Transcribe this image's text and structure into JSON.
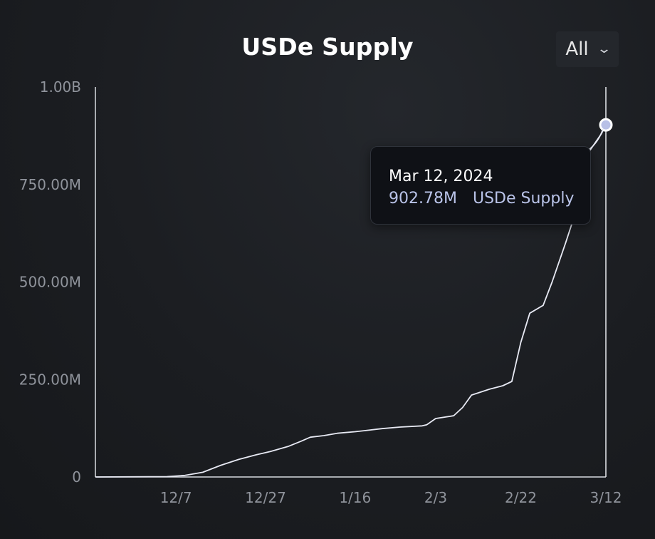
{
  "chart_data": {
    "type": "line",
    "title": "USDe Supply",
    "xlabel": "",
    "ylabel": "",
    "ylim": [
      0,
      1000000000
    ],
    "y_ticks": [
      {
        "value": 0,
        "label": "0"
      },
      {
        "value": 250000000,
        "label": "250.00M"
      },
      {
        "value": 500000000,
        "label": "500.00M"
      },
      {
        "value": 750000000,
        "label": "750.00M"
      },
      {
        "value": 1000000000,
        "label": "1.00B"
      }
    ],
    "x_range": [
      "2023-11-19",
      "2024-03-12"
    ],
    "x_ticks": [
      {
        "date": "2023-12-07",
        "label": "12/7"
      },
      {
        "date": "2023-12-27",
        "label": "12/27"
      },
      {
        "date": "2024-01-16",
        "label": "1/16"
      },
      {
        "date": "2024-02-03",
        "label": "2/3"
      },
      {
        "date": "2024-02-22",
        "label": "2/22"
      },
      {
        "date": "2024-03-12",
        "label": "3/12"
      }
    ],
    "grid": false,
    "series": [
      {
        "name": "USDe Supply",
        "color": "#e8eaf4",
        "points": [
          [
            "2023-11-19",
            0
          ],
          [
            "2023-12-05",
            1000000
          ],
          [
            "2023-12-09",
            4000000
          ],
          [
            "2023-12-13",
            12000000
          ],
          [
            "2023-12-17",
            30000000
          ],
          [
            "2023-12-21",
            45000000
          ],
          [
            "2023-12-25",
            57000000
          ],
          [
            "2023-12-28",
            65000000
          ],
          [
            "2024-01-01",
            78000000
          ],
          [
            "2024-01-04",
            92000000
          ],
          [
            "2024-01-06",
            102000000
          ],
          [
            "2024-01-09",
            106000000
          ],
          [
            "2024-01-12",
            112000000
          ],
          [
            "2024-01-16",
            116000000
          ],
          [
            "2024-01-19",
            120000000
          ],
          [
            "2024-01-22",
            124000000
          ],
          [
            "2024-01-26",
            128000000
          ],
          [
            "2024-01-31",
            131000000
          ],
          [
            "2024-02-01",
            134000000
          ],
          [
            "2024-02-03",
            150000000
          ],
          [
            "2024-02-07",
            157000000
          ],
          [
            "2024-02-09",
            178000000
          ],
          [
            "2024-02-11",
            210000000
          ],
          [
            "2024-02-15",
            225000000
          ],
          [
            "2024-02-18",
            234000000
          ],
          [
            "2024-02-20",
            245000000
          ],
          [
            "2024-02-22",
            345000000
          ],
          [
            "2024-02-24",
            420000000
          ],
          [
            "2024-02-27",
            440000000
          ],
          [
            "2024-02-29",
            500000000
          ],
          [
            "2024-03-03",
            600000000
          ],
          [
            "2024-03-05",
            670000000
          ],
          [
            "2024-03-08",
            830000000
          ],
          [
            "2024-03-11",
            880000000
          ],
          [
            "2024-03-12",
            902780000
          ]
        ]
      }
    ],
    "legend": "none"
  },
  "controls": {
    "range_label": "All",
    "range_icon": "chevron-down-icon"
  },
  "tooltip": {
    "date": "Mar 12, 2024",
    "value": "902.78M",
    "series_name": "USDe Supply"
  }
}
